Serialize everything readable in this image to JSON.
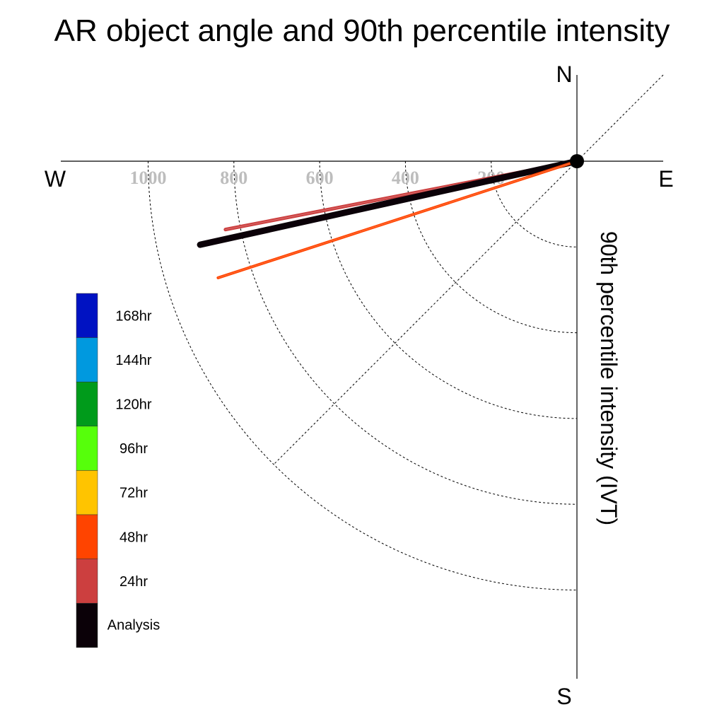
{
  "chart_data": {
    "type": "polar-vector",
    "title": "AR object angle and 90th percentile intensity",
    "axis_label": "90th percentile intensity (IVT)",
    "compass": {
      "north": "N",
      "south": "S",
      "east": "E",
      "west": "W"
    },
    "rings": [
      200,
      400,
      600,
      800,
      1000
    ],
    "ring_labels": [
      "200",
      "400",
      "600",
      "800",
      "1000"
    ],
    "max_range": 1000,
    "series": [
      {
        "name": "24hr",
        "angle_deg": 191,
        "intensity": 835,
        "color": "#cc3f3f"
      },
      {
        "name": "Analysis",
        "angle_deg": 192.5,
        "intensity": 900,
        "color": "#0b0108"
      },
      {
        "name": "48hr",
        "angle_deg": 198,
        "intensity": 880,
        "color": "#ff4400"
      }
    ],
    "legend": [
      {
        "label": "168hr",
        "color": "#0012c2"
      },
      {
        "label": "144hr",
        "color": "#0099df"
      },
      {
        "label": "120hr",
        "color": "#009b1b"
      },
      {
        "label": "96hr",
        "color": "#56ff0b"
      },
      {
        "label": "72hr",
        "color": "#ffc400"
      },
      {
        "label": "48hr",
        "color": "#ff4400"
      },
      {
        "label": "24hr",
        "color": "#cc3f3f"
      },
      {
        "label": "Analysis",
        "color": "#0b0108"
      }
    ]
  }
}
